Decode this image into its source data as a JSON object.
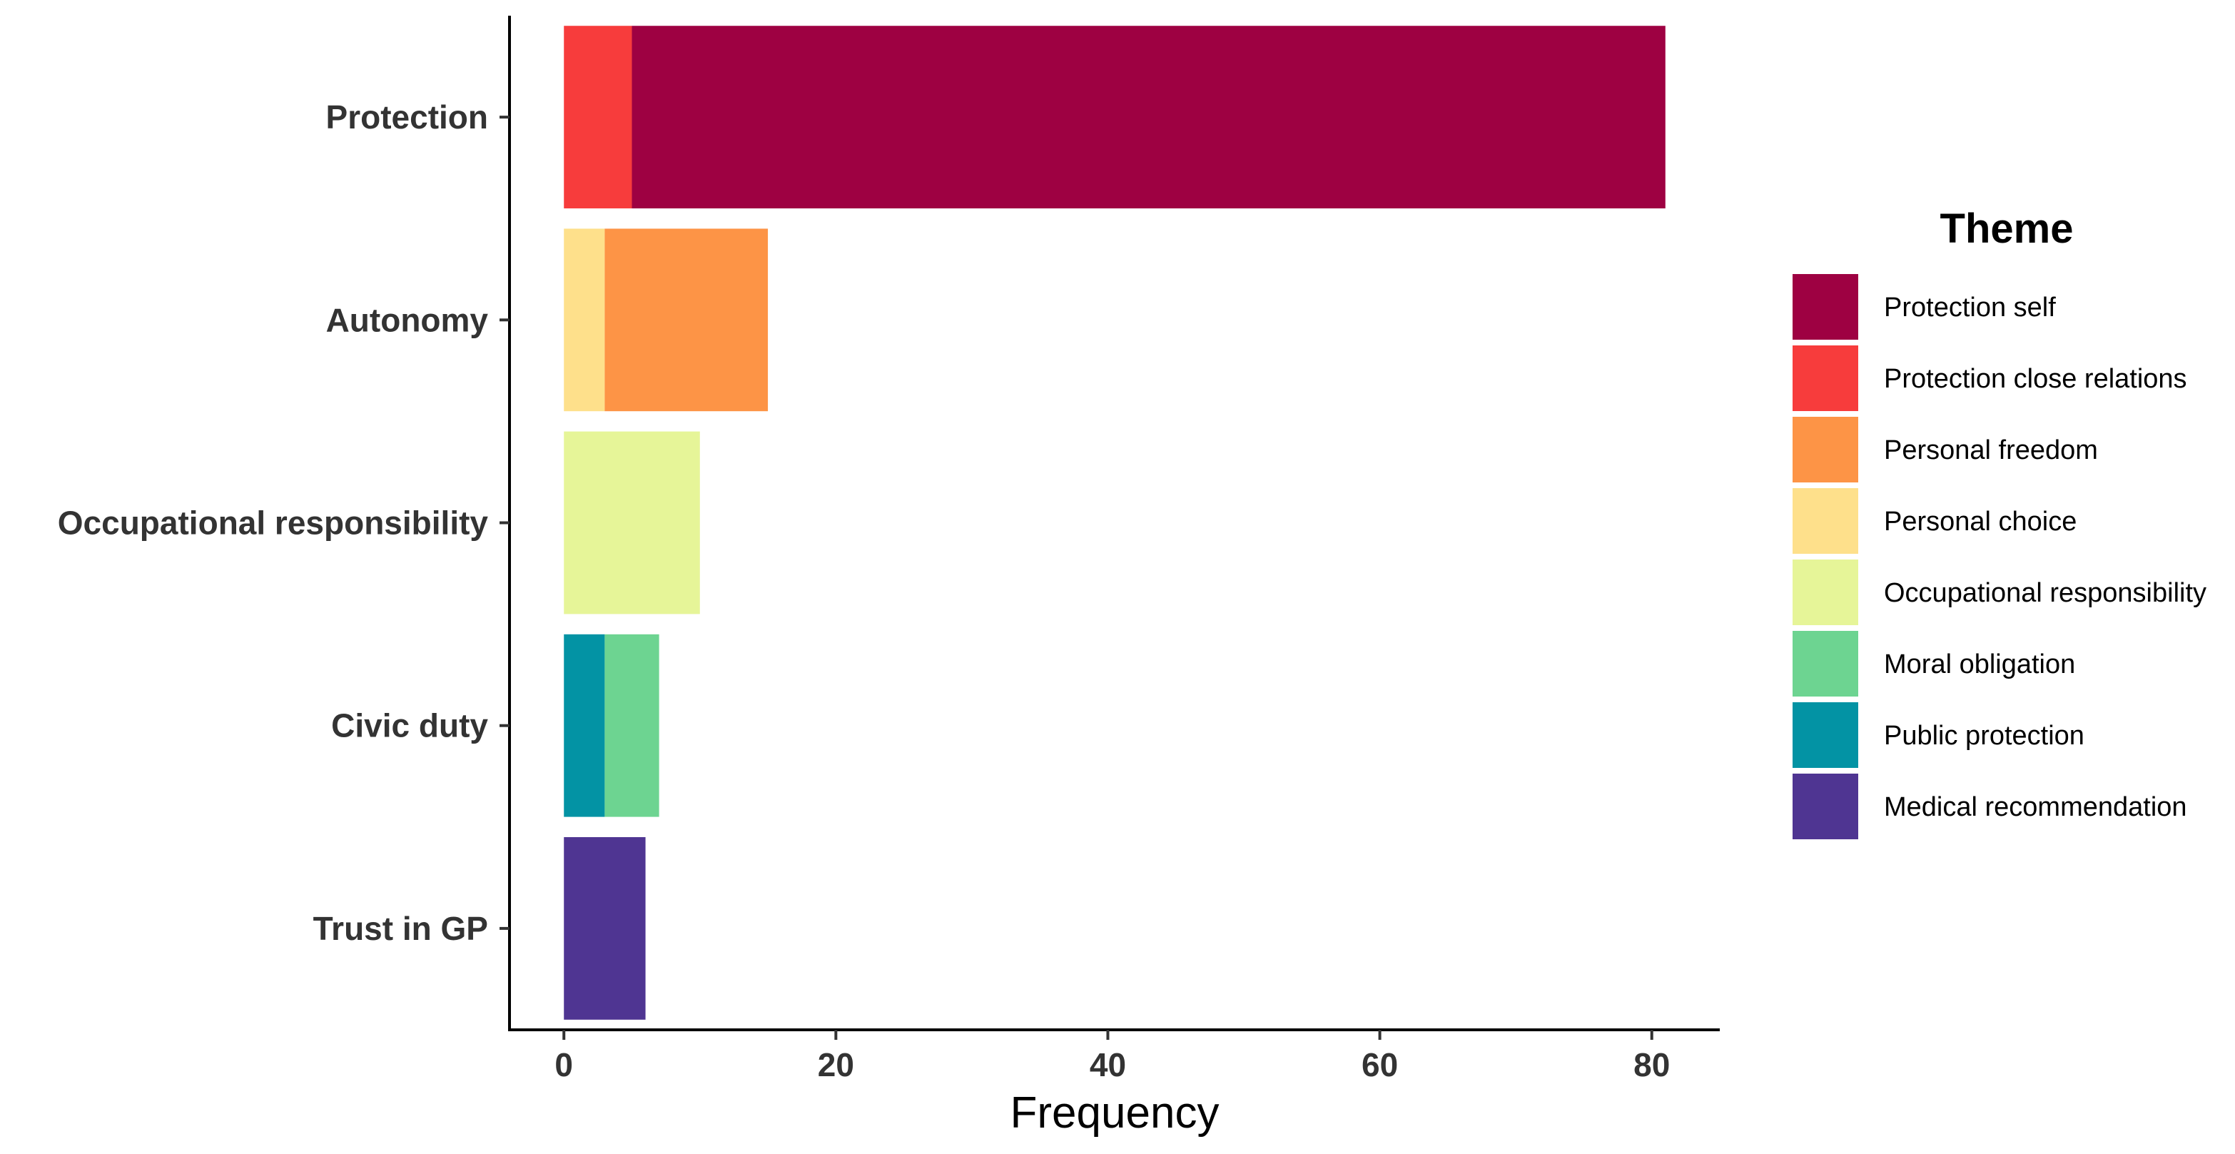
{
  "chart_data": {
    "type": "bar",
    "orientation": "horizontal",
    "stacked": true,
    "categories": [
      "Protection",
      "Autonomy",
      "Occupational responsibility",
      "Civic duty",
      "Trust in GP"
    ],
    "series": [
      {
        "name": "Protection self",
        "color": "#9E0142",
        "values": [
          76,
          0,
          0,
          0,
          0
        ]
      },
      {
        "name": "Protection close relations",
        "color": "#F73C3C",
        "values": [
          5,
          0,
          0,
          0,
          0
        ]
      },
      {
        "name": "Personal freedom",
        "color": "#FD9446",
        "values": [
          0,
          12,
          0,
          0,
          0
        ]
      },
      {
        "name": "Personal choice",
        "color": "#FEE08B",
        "values": [
          0,
          3,
          0,
          0,
          0
        ]
      },
      {
        "name": "Occupational responsibility",
        "color": "#E6F598",
        "values": [
          0,
          0,
          10,
          0,
          0
        ]
      },
      {
        "name": "Moral obligation",
        "color": "#6DD491",
        "values": [
          0,
          0,
          0,
          4,
          0
        ]
      },
      {
        "name": "Public protection",
        "color": "#0393A4",
        "values": [
          0,
          0,
          0,
          3,
          0
        ]
      },
      {
        "name": "Medical recommendation",
        "color": "#4F3592",
        "values": [
          0,
          0,
          0,
          0,
          6
        ]
      }
    ],
    "stack_order_from_zero": [
      "Protection close relations",
      "Protection self",
      "Personal choice",
      "Personal freedom",
      "Occupational responsibility",
      "Public protection",
      "Moral obligation",
      "Medical recommendation"
    ],
    "xlabel": "Frequency",
    "ylabel": "",
    "xlim": [
      -4,
      85
    ],
    "xticks": [
      0,
      20,
      40,
      60,
      80
    ],
    "legend_title": "Theme",
    "legend_position": "right",
    "grid": false
  }
}
